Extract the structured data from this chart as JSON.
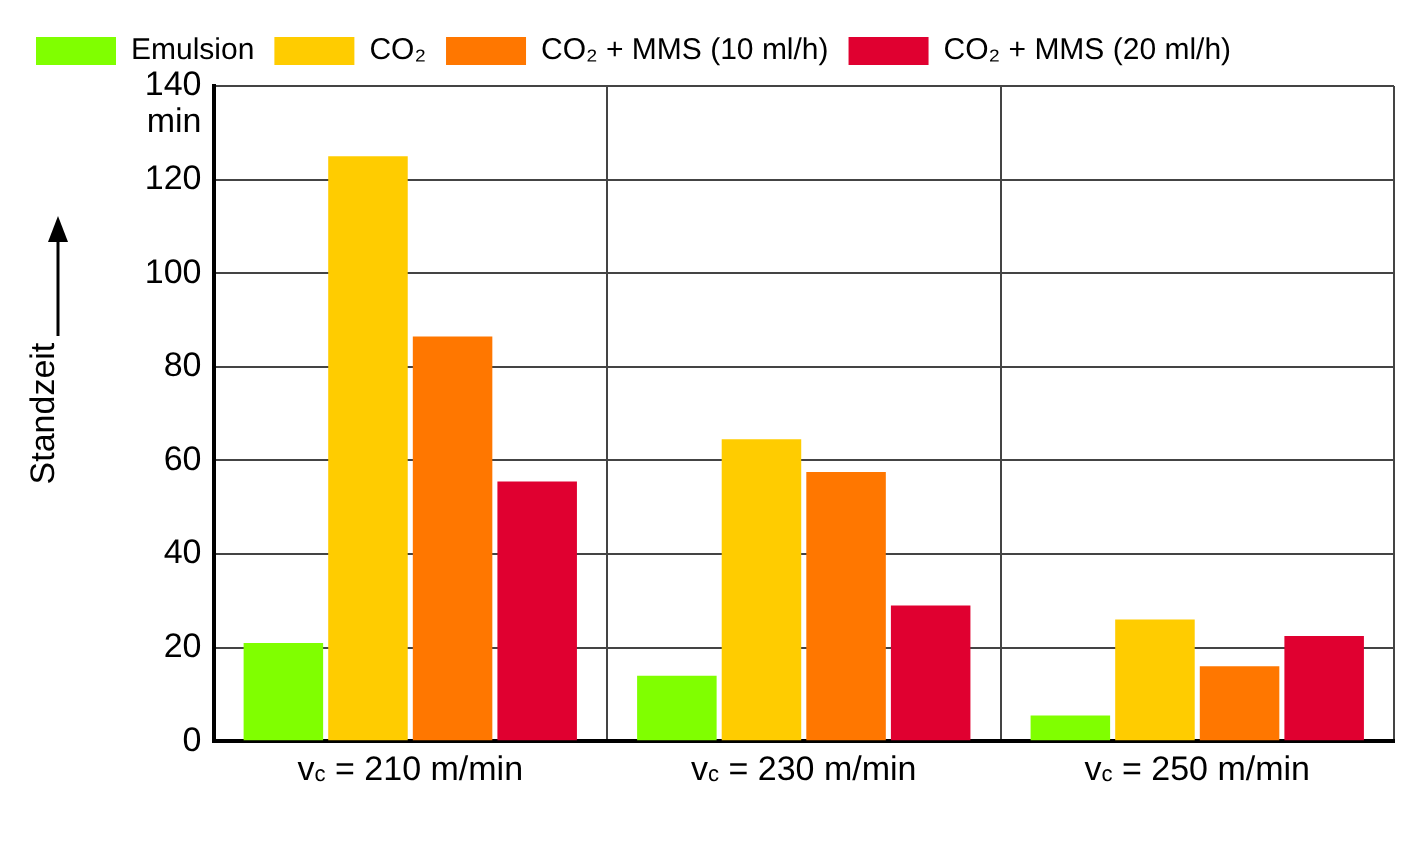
{
  "chart_data": {
    "type": "bar",
    "categories": [
      "v$_{c}$ = 210 m/min",
      "v$_{c}$ = 230 m/min",
      "v$_{c}$ = 250 m/min"
    ],
    "series": [
      {
        "name": "Emulsion",
        "color": "#80ff00",
        "values": [
          21,
          14,
          5.5
        ]
      },
      {
        "name": "CO₂",
        "color": "#ffcc00",
        "values": [
          125,
          64.5,
          26
        ]
      },
      {
        "name": "CO₂ + MMS (10 ml/h)",
        "color": "#ff7700",
        "values": [
          86.5,
          57.5,
          16
        ]
      },
      {
        "name": "CO₂ + MMS (20 ml/h)",
        "color": "#e00030",
        "values": [
          55.5,
          29,
          22.5
        ]
      }
    ],
    "ylabel": "Standzeit",
    "annotations": [
      "min"
    ],
    "ylim": [
      0,
      140
    ],
    "yticks": [
      0,
      20,
      40,
      60,
      80,
      100,
      120,
      140
    ],
    "grid": true,
    "legend": "top"
  }
}
